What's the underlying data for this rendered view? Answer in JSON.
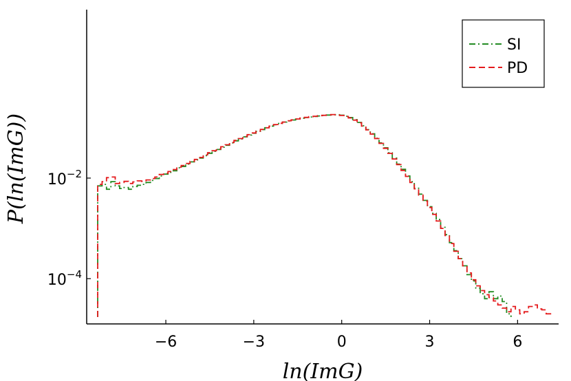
{
  "chart_data": {
    "type": "line",
    "xlabel": "ln(ImG)",
    "ylabel": "P(ln(ImG))",
    "xlim": [
      -8.7,
      7.4
    ],
    "ylim_log10": [
      -4.9,
      1.35
    ],
    "yscale": "log",
    "grid": false,
    "legend_position": "top-right",
    "x_ticks": [
      -6,
      -3,
      0,
      3,
      6
    ],
    "x_tick_labels": [
      "−6",
      "−3",
      "0",
      "3",
      "6"
    ],
    "y_ticks_log10": [
      -2,
      -4
    ],
    "y_tick_labels": [
      {
        "base": "10",
        "exp": "−2"
      },
      {
        "base": "10",
        "exp": "−4"
      }
    ],
    "series": [
      {
        "name": "SI",
        "color": "#228B22",
        "dash": "dashdot",
        "x": [
          -8.25,
          -8.1,
          -7.95,
          -7.8,
          -7.65,
          -7.5,
          -7.35,
          -7.2,
          -7.05,
          -6.9,
          -6.75,
          -6.6,
          -6.45,
          -6.3,
          -6.15,
          -6.0,
          -5.85,
          -5.7,
          -5.55,
          -5.4,
          -5.25,
          -5.1,
          -4.95,
          -4.8,
          -4.65,
          -4.5,
          -4.35,
          -4.2,
          -4.05,
          -3.9,
          -3.75,
          -3.6,
          -3.45,
          -3.3,
          -3.15,
          -3.0,
          -2.85,
          -2.7,
          -2.55,
          -2.4,
          -2.25,
          -2.1,
          -1.95,
          -1.8,
          -1.65,
          -1.5,
          -1.35,
          -1.2,
          -1.05,
          -0.9,
          -0.75,
          -0.6,
          -0.45,
          -0.3,
          -0.15,
          0.0,
          0.15,
          0.3,
          0.45,
          0.6,
          0.75,
          0.9,
          1.05,
          1.2,
          1.35,
          1.5,
          1.65,
          1.8,
          1.95,
          2.1,
          2.25,
          2.4,
          2.55,
          2.7,
          2.85,
          3.0,
          3.15,
          3.3,
          3.45,
          3.6,
          3.75,
          3.9,
          4.05,
          4.2,
          4.35,
          4.5,
          4.65,
          4.8,
          4.95,
          5.1,
          5.25,
          5.4,
          5.55,
          5.7
        ],
        "y": [
          0.007,
          0.0075,
          0.006,
          0.0085,
          0.007,
          0.0062,
          0.0065,
          0.006,
          0.0068,
          0.0072,
          0.0075,
          0.0082,
          0.009,
          0.0098,
          0.011,
          0.012,
          0.013,
          0.014,
          0.016,
          0.017,
          0.019,
          0.021,
          0.023,
          0.025,
          0.028,
          0.031,
          0.034,
          0.037,
          0.041,
          0.045,
          0.05,
          0.055,
          0.06,
          0.066,
          0.072,
          0.078,
          0.085,
          0.092,
          0.1,
          0.108,
          0.115,
          0.122,
          0.13,
          0.137,
          0.143,
          0.149,
          0.155,
          0.16,
          0.164,
          0.168,
          0.172,
          0.176,
          0.179,
          0.181,
          0.182,
          0.178,
          0.17,
          0.16,
          0.145,
          0.128,
          0.11,
          0.092,
          0.076,
          0.062,
          0.05,
          0.04,
          0.032,
          0.025,
          0.019,
          0.015,
          0.011,
          0.0085,
          0.0063,
          0.0048,
          0.0036,
          0.0027,
          0.002,
          0.0015,
          0.00105,
          0.00075,
          0.00052,
          0.00036,
          0.00025,
          0.00018,
          0.00012,
          9e-05,
          6.5e-05,
          5e-05,
          4e-05,
          5.5e-05,
          4e-05,
          4.5e-05,
          3.5e-05,
          2e-05
        ]
      },
      {
        "name": "PD",
        "color": "#E41A1C",
        "dash": "dash",
        "x": [
          -8.25,
          -8.1,
          -7.95,
          -7.8,
          -7.65,
          -7.5,
          -7.35,
          -7.2,
          -7.05,
          -6.9,
          -6.75,
          -6.6,
          -6.45,
          -6.3,
          -6.15,
          -6.0,
          -5.85,
          -5.7,
          -5.55,
          -5.4,
          -5.25,
          -5.1,
          -4.95,
          -4.8,
          -4.65,
          -4.5,
          -4.35,
          -4.2,
          -4.05,
          -3.9,
          -3.75,
          -3.6,
          -3.45,
          -3.3,
          -3.15,
          -3.0,
          -2.85,
          -2.7,
          -2.55,
          -2.4,
          -2.25,
          -2.1,
          -1.95,
          -1.8,
          -1.65,
          -1.5,
          -1.35,
          -1.2,
          -1.05,
          -0.9,
          -0.75,
          -0.6,
          -0.45,
          -0.3,
          -0.15,
          0.0,
          0.15,
          0.3,
          0.45,
          0.6,
          0.75,
          0.9,
          1.05,
          1.2,
          1.35,
          1.5,
          1.65,
          1.8,
          1.95,
          2.1,
          2.25,
          2.4,
          2.55,
          2.7,
          2.85,
          3.0,
          3.15,
          3.3,
          3.45,
          3.6,
          3.75,
          3.9,
          4.05,
          4.2,
          4.35,
          4.5,
          4.65,
          4.8,
          4.95,
          5.1,
          5.25,
          5.4,
          5.55,
          5.7,
          5.85,
          6.0,
          6.15,
          6.3,
          6.45,
          6.6,
          6.75,
          6.9,
          7.05
        ],
        "y": [
          0.0075,
          0.0085,
          0.0102,
          0.0105,
          0.0078,
          0.0082,
          0.0086,
          0.0078,
          0.0084,
          0.0088,
          0.0086,
          0.0092,
          0.0098,
          0.0105,
          0.0118,
          0.0125,
          0.0135,
          0.0148,
          0.0165,
          0.0178,
          0.0195,
          0.0215,
          0.0235,
          0.0258,
          0.029,
          0.032,
          0.035,
          0.038,
          0.042,
          0.046,
          0.051,
          0.056,
          0.061,
          0.067,
          0.073,
          0.079,
          0.086,
          0.093,
          0.1,
          0.108,
          0.116,
          0.123,
          0.13,
          0.138,
          0.144,
          0.15,
          0.156,
          0.161,
          0.166,
          0.17,
          0.174,
          0.177,
          0.18,
          0.183,
          0.181,
          0.176,
          0.168,
          0.157,
          0.142,
          0.126,
          0.108,
          0.091,
          0.075,
          0.061,
          0.049,
          0.039,
          0.031,
          0.024,
          0.0185,
          0.0142,
          0.0108,
          0.0082,
          0.0061,
          0.0046,
          0.0035,
          0.0026,
          0.0019,
          0.0014,
          0.001,
          0.00072,
          0.0005,
          0.00035,
          0.00025,
          0.00018,
          0.00013,
          9.5e-05,
          7.2e-05,
          5.8e-05,
          4.8e-05,
          4.2e-05,
          3.6e-05,
          3e-05,
          2.6e-05,
          2.2e-05,
          2.8e-05,
          2.4e-05,
          2e-05,
          2.2e-05,
          2.8e-05,
          3e-05,
          2.5e-05,
          2.4e-05,
          2e-05
        ]
      }
    ]
  }
}
